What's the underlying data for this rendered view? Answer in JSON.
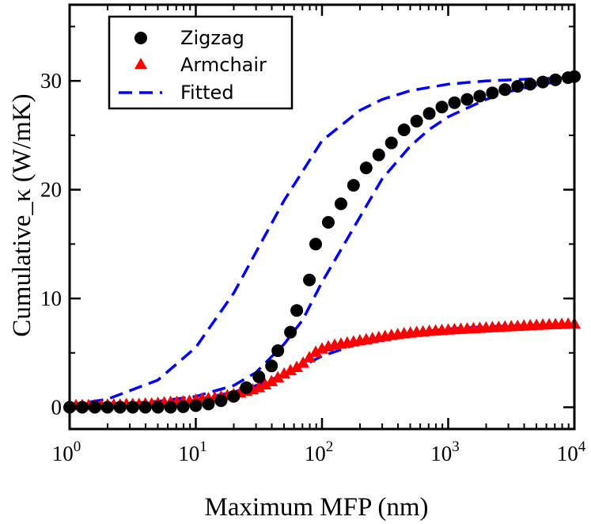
{
  "chart_data": {
    "type": "scatter",
    "xscale": "log",
    "xlim": [
      1,
      10000
    ],
    "ylim": [
      -2,
      37
    ],
    "xlabel": "Maximum MFP (nm)",
    "ylabel": "Cumulative_κ (W/mK)",
    "x_ticks": [
      {
        "value": 1,
        "base": "10",
        "exp": "0"
      },
      {
        "value": 10,
        "base": "10",
        "exp": "1"
      },
      {
        "value": 100,
        "base": "10",
        "exp": "2"
      },
      {
        "value": 1000,
        "base": "10",
        "exp": "3"
      },
      {
        "value": 10000,
        "base": "10",
        "exp": "4"
      }
    ],
    "y_ticks": [
      {
        "value": 0,
        "label": "0"
      },
      {
        "value": 10,
        "label": "10"
      },
      {
        "value": 20,
        "label": "20"
      },
      {
        "value": 30,
        "label": "30"
      }
    ],
    "legend_position": "top-left",
    "series": [
      {
        "name": "Zigzag",
        "marker": "circle",
        "color": "#000000",
        "points": [
          [
            1,
            0.0
          ],
          [
            1.259,
            0.0
          ],
          [
            1.585,
            0.0
          ],
          [
            1.995,
            0.0
          ],
          [
            2.512,
            0.0
          ],
          [
            3.162,
            0.0
          ],
          [
            3.981,
            0.0
          ],
          [
            5.012,
            0.0
          ],
          [
            6.31,
            0.0
          ],
          [
            7.943,
            0.05
          ],
          [
            10,
            0.15
          ],
          [
            12.59,
            0.3
          ],
          [
            15.85,
            0.6
          ],
          [
            19.95,
            1.0
          ],
          [
            25.12,
            1.8
          ],
          [
            31.62,
            2.8
          ],
          [
            39.81,
            3.8
          ],
          [
            44.67,
            5.2
          ],
          [
            56.23,
            6.9
          ],
          [
            63.1,
            8.9
          ],
          [
            79.43,
            11.7
          ],
          [
            89.13,
            15.0
          ],
          [
            112.2,
            17.0
          ],
          [
            141.3,
            18.7
          ],
          [
            177.8,
            20.4
          ],
          [
            223.9,
            22.0
          ],
          [
            281.8,
            23.2
          ],
          [
            354.8,
            24.3
          ],
          [
            446.7,
            25.5
          ],
          [
            562.3,
            26.3
          ],
          [
            707.9,
            27.0
          ],
          [
            891.3,
            27.6
          ],
          [
            1122,
            28.0
          ],
          [
            1413,
            28.3
          ],
          [
            1778,
            28.6
          ],
          [
            2239,
            28.9
          ],
          [
            2818,
            29.2
          ],
          [
            3548,
            29.5
          ],
          [
            4467,
            29.7
          ],
          [
            5623,
            29.9
          ],
          [
            7079,
            30.1
          ],
          [
            8913,
            30.3
          ],
          [
            10000,
            30.4
          ]
        ]
      },
      {
        "name": "Armchair",
        "marker": "triangle",
        "color": "#ff0000",
        "points": [
          [
            1,
            0.2
          ],
          [
            1.122,
            0.2
          ],
          [
            1.259,
            0.2
          ],
          [
            1.413,
            0.2
          ],
          [
            1.585,
            0.2
          ],
          [
            1.778,
            0.2
          ],
          [
            1.995,
            0.25
          ],
          [
            2.239,
            0.25
          ],
          [
            2.512,
            0.25
          ],
          [
            2.818,
            0.3
          ],
          [
            3.162,
            0.3
          ],
          [
            3.548,
            0.3
          ],
          [
            3.981,
            0.35
          ],
          [
            4.467,
            0.35
          ],
          [
            5.012,
            0.4
          ],
          [
            5.623,
            0.45
          ],
          [
            6.31,
            0.5
          ],
          [
            7.079,
            0.5
          ],
          [
            7.943,
            0.55
          ],
          [
            8.913,
            0.6
          ],
          [
            10,
            0.7
          ],
          [
            11.22,
            0.8
          ],
          [
            12.59,
            0.85
          ],
          [
            14.13,
            0.9
          ],
          [
            15.85,
            1.0
          ],
          [
            17.78,
            1.1
          ],
          [
            19.95,
            1.2
          ],
          [
            22.39,
            1.35
          ],
          [
            25.12,
            1.5
          ],
          [
            28.18,
            1.65
          ],
          [
            31.62,
            1.85
          ],
          [
            35.48,
            2.1
          ],
          [
            39.81,
            2.4
          ],
          [
            44.67,
            2.75
          ],
          [
            50.12,
            3.1
          ],
          [
            56.23,
            3.4
          ],
          [
            63.1,
            3.7
          ],
          [
            70.79,
            4.1
          ],
          [
            79.43,
            4.6
          ],
          [
            89.13,
            5.1
          ],
          [
            100,
            5.4
          ],
          [
            112.2,
            5.6
          ],
          [
            125.9,
            5.75
          ],
          [
            141.3,
            5.85
          ],
          [
            158.5,
            5.95
          ],
          [
            177.8,
            6.05
          ],
          [
            199.5,
            6.15
          ],
          [
            223.9,
            6.25
          ],
          [
            251.2,
            6.35
          ],
          [
            281.8,
            6.45
          ],
          [
            316.2,
            6.55
          ],
          [
            354.8,
            6.65
          ],
          [
            398.1,
            6.72
          ],
          [
            446.7,
            6.8
          ],
          [
            501.2,
            6.86
          ],
          [
            562.3,
            6.92
          ],
          [
            631,
            6.97
          ],
          [
            707.9,
            7.02
          ],
          [
            794.3,
            7.06
          ],
          [
            891.3,
            7.1
          ],
          [
            1000,
            7.14
          ],
          [
            1122,
            7.18
          ],
          [
            1259,
            7.21
          ],
          [
            1413,
            7.24
          ],
          [
            1585,
            7.27
          ],
          [
            1778,
            7.3
          ],
          [
            1995,
            7.33
          ],
          [
            2239,
            7.36
          ],
          [
            2512,
            7.39
          ],
          [
            2818,
            7.42
          ],
          [
            3162,
            7.45
          ],
          [
            3548,
            7.48
          ],
          [
            3981,
            7.51
          ],
          [
            4467,
            7.54
          ],
          [
            5012,
            7.57
          ],
          [
            5623,
            7.6
          ],
          [
            6310,
            7.62
          ],
          [
            7079,
            7.64
          ],
          [
            7943,
            7.66
          ],
          [
            8913,
            7.68
          ],
          [
            10000,
            7.7
          ]
        ]
      }
    ],
    "fitted": {
      "name": "Fitted",
      "color": "#0000ff",
      "style": "dashed",
      "curves": [
        {
          "for": "Zigzag",
          "points": [
            [
              1,
              0.2
            ],
            [
              2,
              0.75
            ],
            [
              5,
              2.5
            ],
            [
              10,
              5.5
            ],
            [
              20,
              10.5
            ],
            [
              50,
              19.0
            ],
            [
              100,
              24.5
            ],
            [
              200,
              27.3
            ],
            [
              300,
              28.3
            ],
            [
              500,
              29.1
            ],
            [
              1000,
              29.7
            ],
            [
              2000,
              30.0
            ],
            [
              5000,
              30.2
            ],
            [
              10000,
              30.3
            ]
          ]
        },
        {
          "for": "Zigzag",
          "points": [
            [
              1,
              0.1
            ],
            [
              2,
              0.25
            ],
            [
              3,
              0.35
            ],
            [
              5,
              0.55
            ],
            [
              10,
              1.0
            ],
            [
              20,
              2.0
            ],
            [
              30,
              3.2
            ],
            [
              50,
              5.8
            ],
            [
              70,
              8.0
            ],
            [
              100,
              11.5
            ],
            [
              150,
              15.0
            ],
            [
              200,
              17.5
            ],
            [
              300,
              21.0
            ],
            [
              500,
              24.0
            ],
            [
              700,
              25.5
            ],
            [
              1000,
              26.7
            ],
            [
              2000,
              28.3
            ],
            [
              3000,
              29.0
            ],
            [
              5000,
              29.6
            ],
            [
              10000,
              30.2
            ]
          ]
        },
        {
          "for": "Armchair",
          "points": [
            [
              1,
              0.1
            ],
            [
              2,
              0.2
            ],
            [
              5,
              0.4
            ],
            [
              10,
              0.7
            ],
            [
              20,
              1.4
            ],
            [
              30,
              2.0
            ],
            [
              50,
              3.0
            ],
            [
              70,
              3.8
            ],
            [
              100,
              4.7
            ],
            [
              200,
              5.9
            ],
            [
              300,
              6.4
            ],
            [
              500,
              6.8
            ],
            [
              1000,
              7.2
            ],
            [
              2000,
              7.4
            ],
            [
              5000,
              7.55
            ],
            [
              10000,
              7.6
            ]
          ]
        }
      ]
    }
  }
}
